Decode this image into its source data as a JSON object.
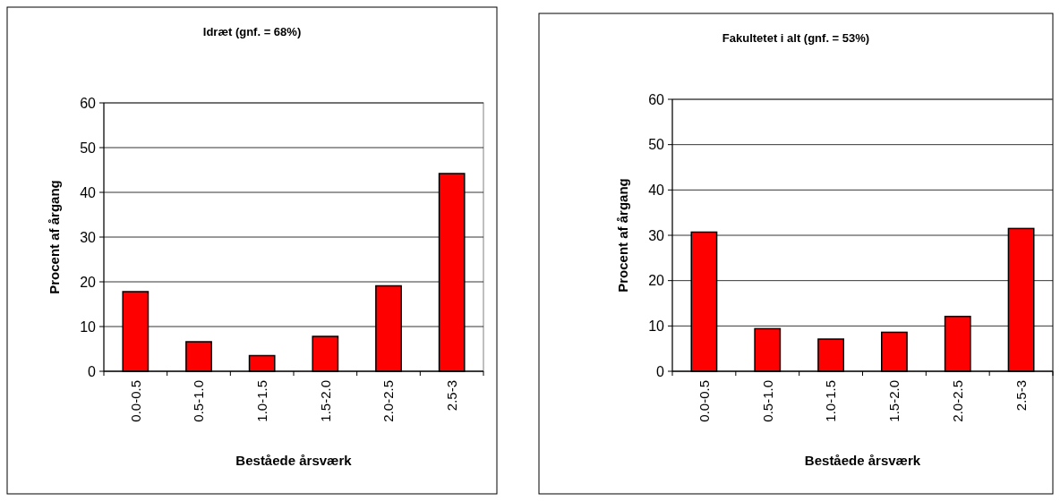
{
  "chart_data": [
    {
      "type": "bar",
      "title": "Idræt (gnf. = 68%)",
      "xlabel": "Beståede årsværk",
      "ylabel": "Procent af årgang",
      "categories": [
        "0.0-0.5",
        "0.5-1.0",
        "1.0-1.5",
        "1.5-2.0",
        "2.0-2.5",
        "2.5-3"
      ],
      "values": [
        17.8,
        6.6,
        3.5,
        7.8,
        19.1,
        44.2
      ],
      "color": "#ff0000",
      "ylim": [
        0,
        60
      ],
      "yticks": [
        0,
        10,
        20,
        30,
        40,
        50,
        60
      ],
      "grid": "y"
    },
    {
      "type": "bar",
      "title": "Fakultetet i alt (gnf. = 53%)",
      "xlabel": "Beståede årsværk",
      "ylabel": "Procent af årgang",
      "categories": [
        "0.0-0.5",
        "0.5-1.0",
        "1.0-1.5",
        "1.5-2.0",
        "2.0-2.5",
        "2.5-3"
      ],
      "values": [
        30.7,
        9.4,
        7.1,
        8.6,
        12.1,
        31.5
      ],
      "color": "#ff0000",
      "ylim": [
        0,
        60
      ],
      "yticks": [
        0,
        10,
        20,
        30,
        40,
        50,
        60
      ],
      "grid": "y"
    }
  ]
}
